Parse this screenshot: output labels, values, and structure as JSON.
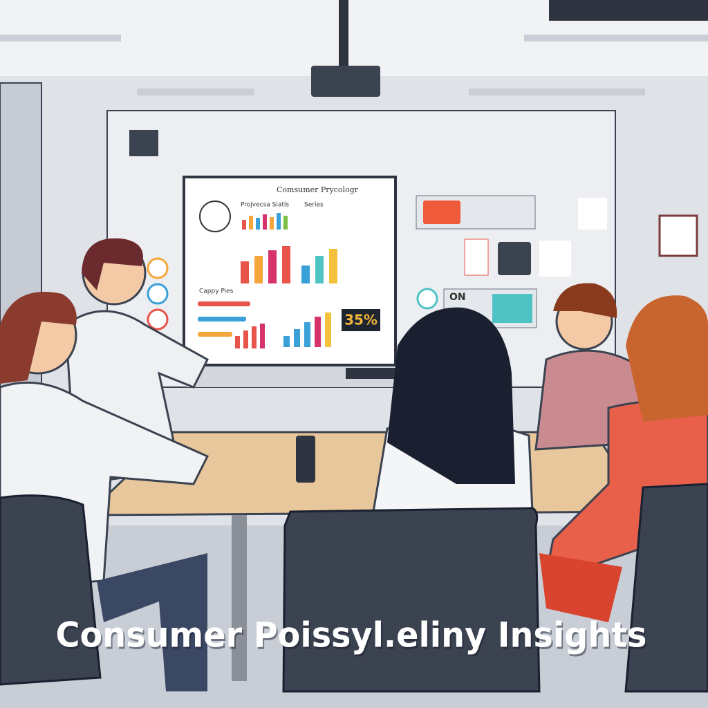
{
  "caption": "Consumer Poissyl.eliny Insights",
  "screen": {
    "title": "Comsumer Prycologr",
    "labels": [
      "Projvecsa Siatls",
      "Series",
      "Cappy Pies"
    ],
    "stat": "35%"
  },
  "wall_panel": {
    "badge": "ON"
  }
}
